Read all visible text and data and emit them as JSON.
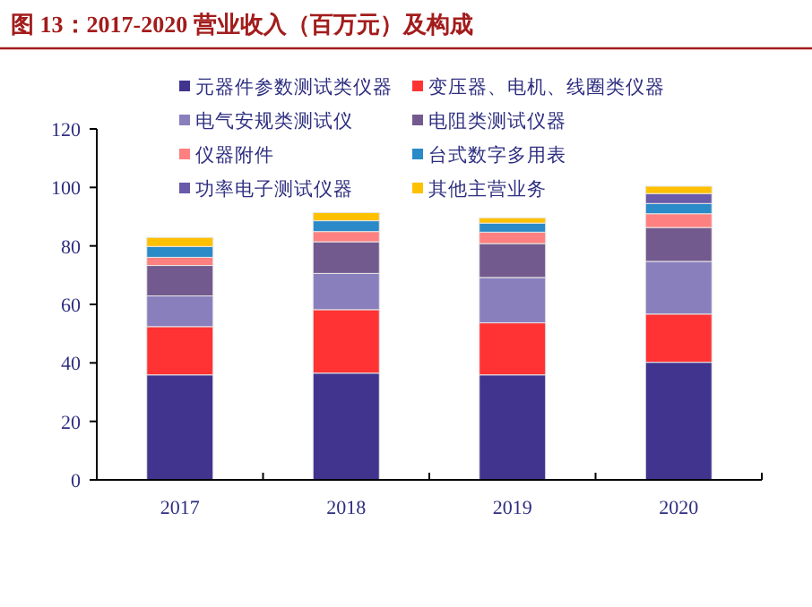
{
  "chart_data": {
    "type": "bar",
    "stacked": true,
    "title": "图 13：2017-2020 营业收入（百万元）及构成",
    "categories": [
      "2017",
      "2018",
      "2019",
      "2020"
    ],
    "series": [
      {
        "name": "元器件参数测试类仪器",
        "color": "#41348f",
        "values": [
          35.9,
          36.5,
          35.9,
          40.2
        ]
      },
      {
        "name": "变压器、电机、线圈类仪器",
        "color": "#ff3333",
        "values": [
          16.5,
          21.7,
          17.8,
          16.5
        ]
      },
      {
        "name": "电气安规类测试仪",
        "color": "#8a7fbd",
        "values": [
          10.5,
          12.4,
          15.5,
          18.0
        ]
      },
      {
        "name": "电阻类测试仪器",
        "color": "#735a8e",
        "values": [
          10.4,
          10.8,
          11.6,
          11.6
        ]
      },
      {
        "name": "仪器附件",
        "color": "#ff8080",
        "values": [
          2.8,
          3.5,
          3.9,
          4.7
        ]
      },
      {
        "name": "台式数字多用表",
        "color": "#2b8ac8",
        "values": [
          3.7,
          3.7,
          3.1,
          3.5
        ]
      },
      {
        "name": "功率电子测试仪器",
        "color": "#6a5aaa",
        "values": [
          null,
          null,
          null,
          3.4
        ]
      },
      {
        "name": "其他主营业务",
        "color": "#ffc000",
        "values": [
          3.1,
          2.8,
          1.8,
          2.5
        ]
      }
    ],
    "ylim": [
      0,
      120
    ],
    "yticks": [
      0,
      20,
      40,
      60,
      80,
      100,
      120
    ],
    "grid": false,
    "legend": "top"
  }
}
